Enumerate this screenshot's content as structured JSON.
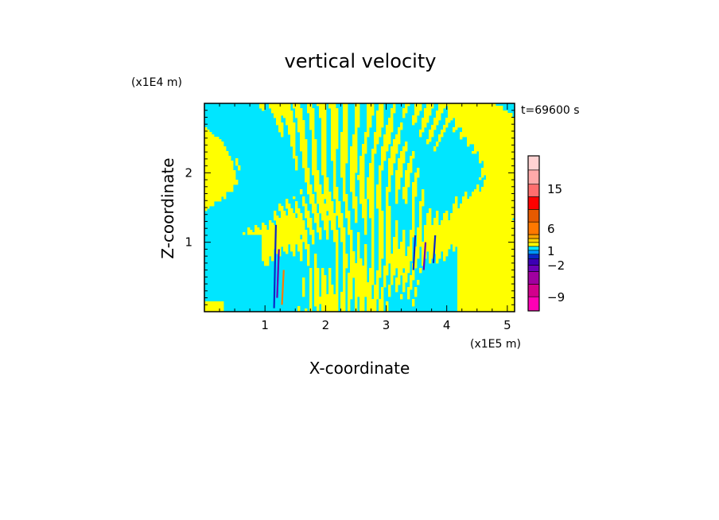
{
  "chart_data": {
    "type": "heatmap",
    "title": "vertical velocity",
    "xlabel": "X-coordinate",
    "ylabel": "Z-coordinate",
    "x_unit": "(x1E5 m)",
    "y_unit": "(x1E4 m)",
    "time_label": "t=69600 s",
    "xlim": [
      0,
      5.12
    ],
    "ylim": [
      0,
      3.0
    ],
    "x_ticks": [
      1,
      2,
      3,
      4,
      5
    ],
    "y_ticks": [
      1,
      2
    ],
    "colorbar": {
      "levels": [
        {
          "value": -12,
          "color": "#ff00b4"
        },
        {
          "value": -9,
          "color": "#d2008c"
        },
        {
          "value": -6,
          "color": "#a000a0"
        },
        {
          "value": -4,
          "color": "#6a00b8"
        },
        {
          "value": -3,
          "color": "#3c00b4"
        },
        {
          "value": -2,
          "color": "#0a28c8"
        },
        {
          "value": -1,
          "color": "#0096ff"
        },
        {
          "value": 0,
          "color": "#00e6ff"
        },
        {
          "value": 0.5,
          "color": "#ffff00"
        },
        {
          "value": 1,
          "color": "#ffd200"
        },
        {
          "value": 2,
          "color": "#ffa500"
        },
        {
          "value": 3,
          "color": "#ff7800"
        },
        {
          "value": 6,
          "color": "#e65a00"
        },
        {
          "value": 9,
          "color": "#ff0000"
        },
        {
          "value": 12,
          "color": "#ff6e6e"
        },
        {
          "value": 15,
          "color": "#ffaaaa"
        },
        {
          "value": 18,
          "color": "#ffd2d2"
        },
        {
          "value": 21,
          "color": "#ffeeea"
        }
      ],
      "tick_labels": [
        "15",
        "6",
        "1",
        "−2",
        "−9"
      ]
    }
  }
}
